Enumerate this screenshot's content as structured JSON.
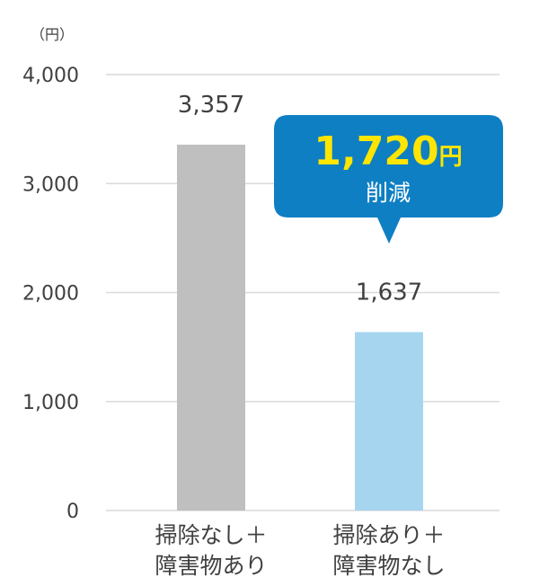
{
  "chart_data": {
    "type": "bar",
    "unit_label": "（円）",
    "categories": [
      [
        "掃除なし＋",
        "障害物あり"
      ],
      [
        "掃除あり＋",
        "障害物なし"
      ]
    ],
    "values": [
      3357,
      1637
    ],
    "value_labels": [
      "3,357",
      "1,637"
    ],
    "ylim": [
      0,
      4000
    ],
    "yticks": [
      0,
      1000,
      2000,
      3000,
      4000
    ],
    "ytick_labels": [
      "0",
      "1,000",
      "2,000",
      "3,000",
      "4,000"
    ],
    "grid": true,
    "colors": [
      "#BFBFBF",
      "#A6D5F0"
    ],
    "gridline_color": "#D9D9D9",
    "callout": {
      "value": "1,720",
      "unit": "円",
      "text": "削減",
      "bg_color": "#0E7FC3",
      "value_color": "#FFE500"
    }
  }
}
